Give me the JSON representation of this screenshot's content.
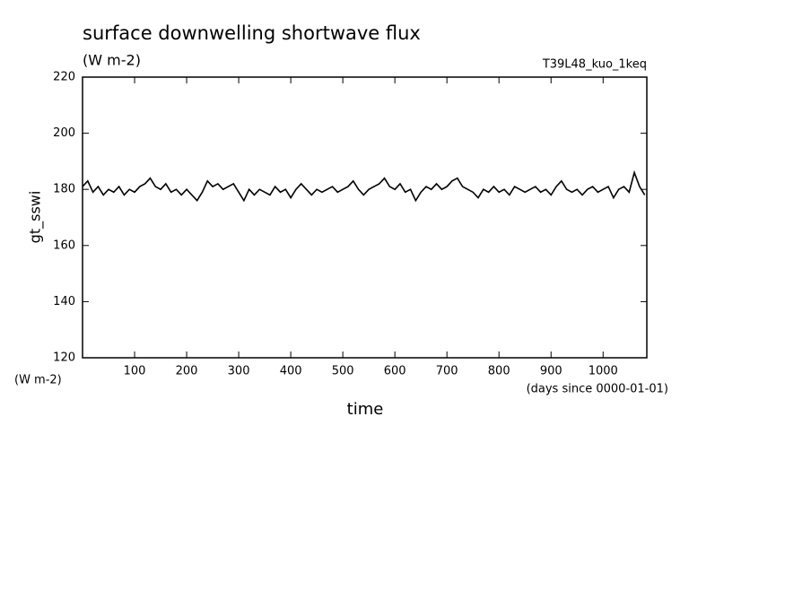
{
  "chart_data": {
    "type": "line",
    "title": "surface downwelling shortwave flux",
    "subtitle": "(W m-2)",
    "tag": "T39L48_kuo_1keq",
    "y_label": "gt_sswi",
    "y_unit": "(W m-2)",
    "x_label": "time",
    "x_unit": "(days since 0000-01-01)",
    "xlim": [
      0,
      1084
    ],
    "ylim": [
      120,
      220
    ],
    "xticks": [
      100,
      200,
      300,
      400,
      500,
      600,
      700,
      800,
      900,
      1000
    ],
    "yticks": [
      120,
      140,
      160,
      180,
      200,
      220
    ],
    "x": [
      0,
      10,
      20,
      30,
      40,
      50,
      60,
      70,
      80,
      90,
      100,
      110,
      120,
      130,
      140,
      150,
      160,
      170,
      180,
      190,
      200,
      210,
      220,
      230,
      240,
      250,
      260,
      270,
      280,
      290,
      300,
      310,
      320,
      330,
      340,
      350,
      360,
      370,
      380,
      390,
      400,
      410,
      420,
      430,
      440,
      450,
      460,
      470,
      480,
      490,
      500,
      510,
      520,
      530,
      540,
      550,
      560,
      570,
      580,
      590,
      600,
      610,
      620,
      630,
      640,
      650,
      660,
      670,
      680,
      690,
      700,
      710,
      720,
      730,
      740,
      750,
      760,
      770,
      780,
      790,
      800,
      810,
      820,
      830,
      840,
      850,
      860,
      870,
      880,
      890,
      900,
      910,
      920,
      930,
      940,
      950,
      960,
      970,
      980,
      990,
      1000,
      1010,
      1020,
      1030,
      1040,
      1050,
      1060,
      1070,
      1080
    ],
    "series": [
      {
        "color": "#000000",
        "values": [
          181,
          183,
          179,
          181,
          178,
          180,
          179,
          181,
          178,
          180,
          179,
          181,
          182,
          184,
          181,
          180,
          182,
          179,
          180,
          178,
          180,
          178,
          176,
          179,
          183,
          181,
          182,
          180,
          181,
          182,
          179,
          176,
          180,
          178,
          180,
          179,
          178,
          181,
          179,
          180,
          177,
          180,
          182,
          180,
          178,
          180,
          179,
          180,
          181,
          179,
          180,
          181,
          183,
          180,
          178,
          180,
          181,
          182,
          184,
          181,
          180,
          182,
          179,
          180,
          176,
          179,
          181,
          180,
          182,
          180,
          181,
          183,
          184,
          181,
          180,
          179,
          177,
          180,
          179,
          181,
          179,
          180,
          178,
          181,
          180,
          179,
          180,
          181,
          179,
          180,
          178,
          181,
          183,
          180,
          179,
          180,
          178,
          180,
          181,
          179,
          180,
          181,
          177,
          180,
          181,
          179,
          186,
          181,
          178
        ]
      }
    ]
  }
}
